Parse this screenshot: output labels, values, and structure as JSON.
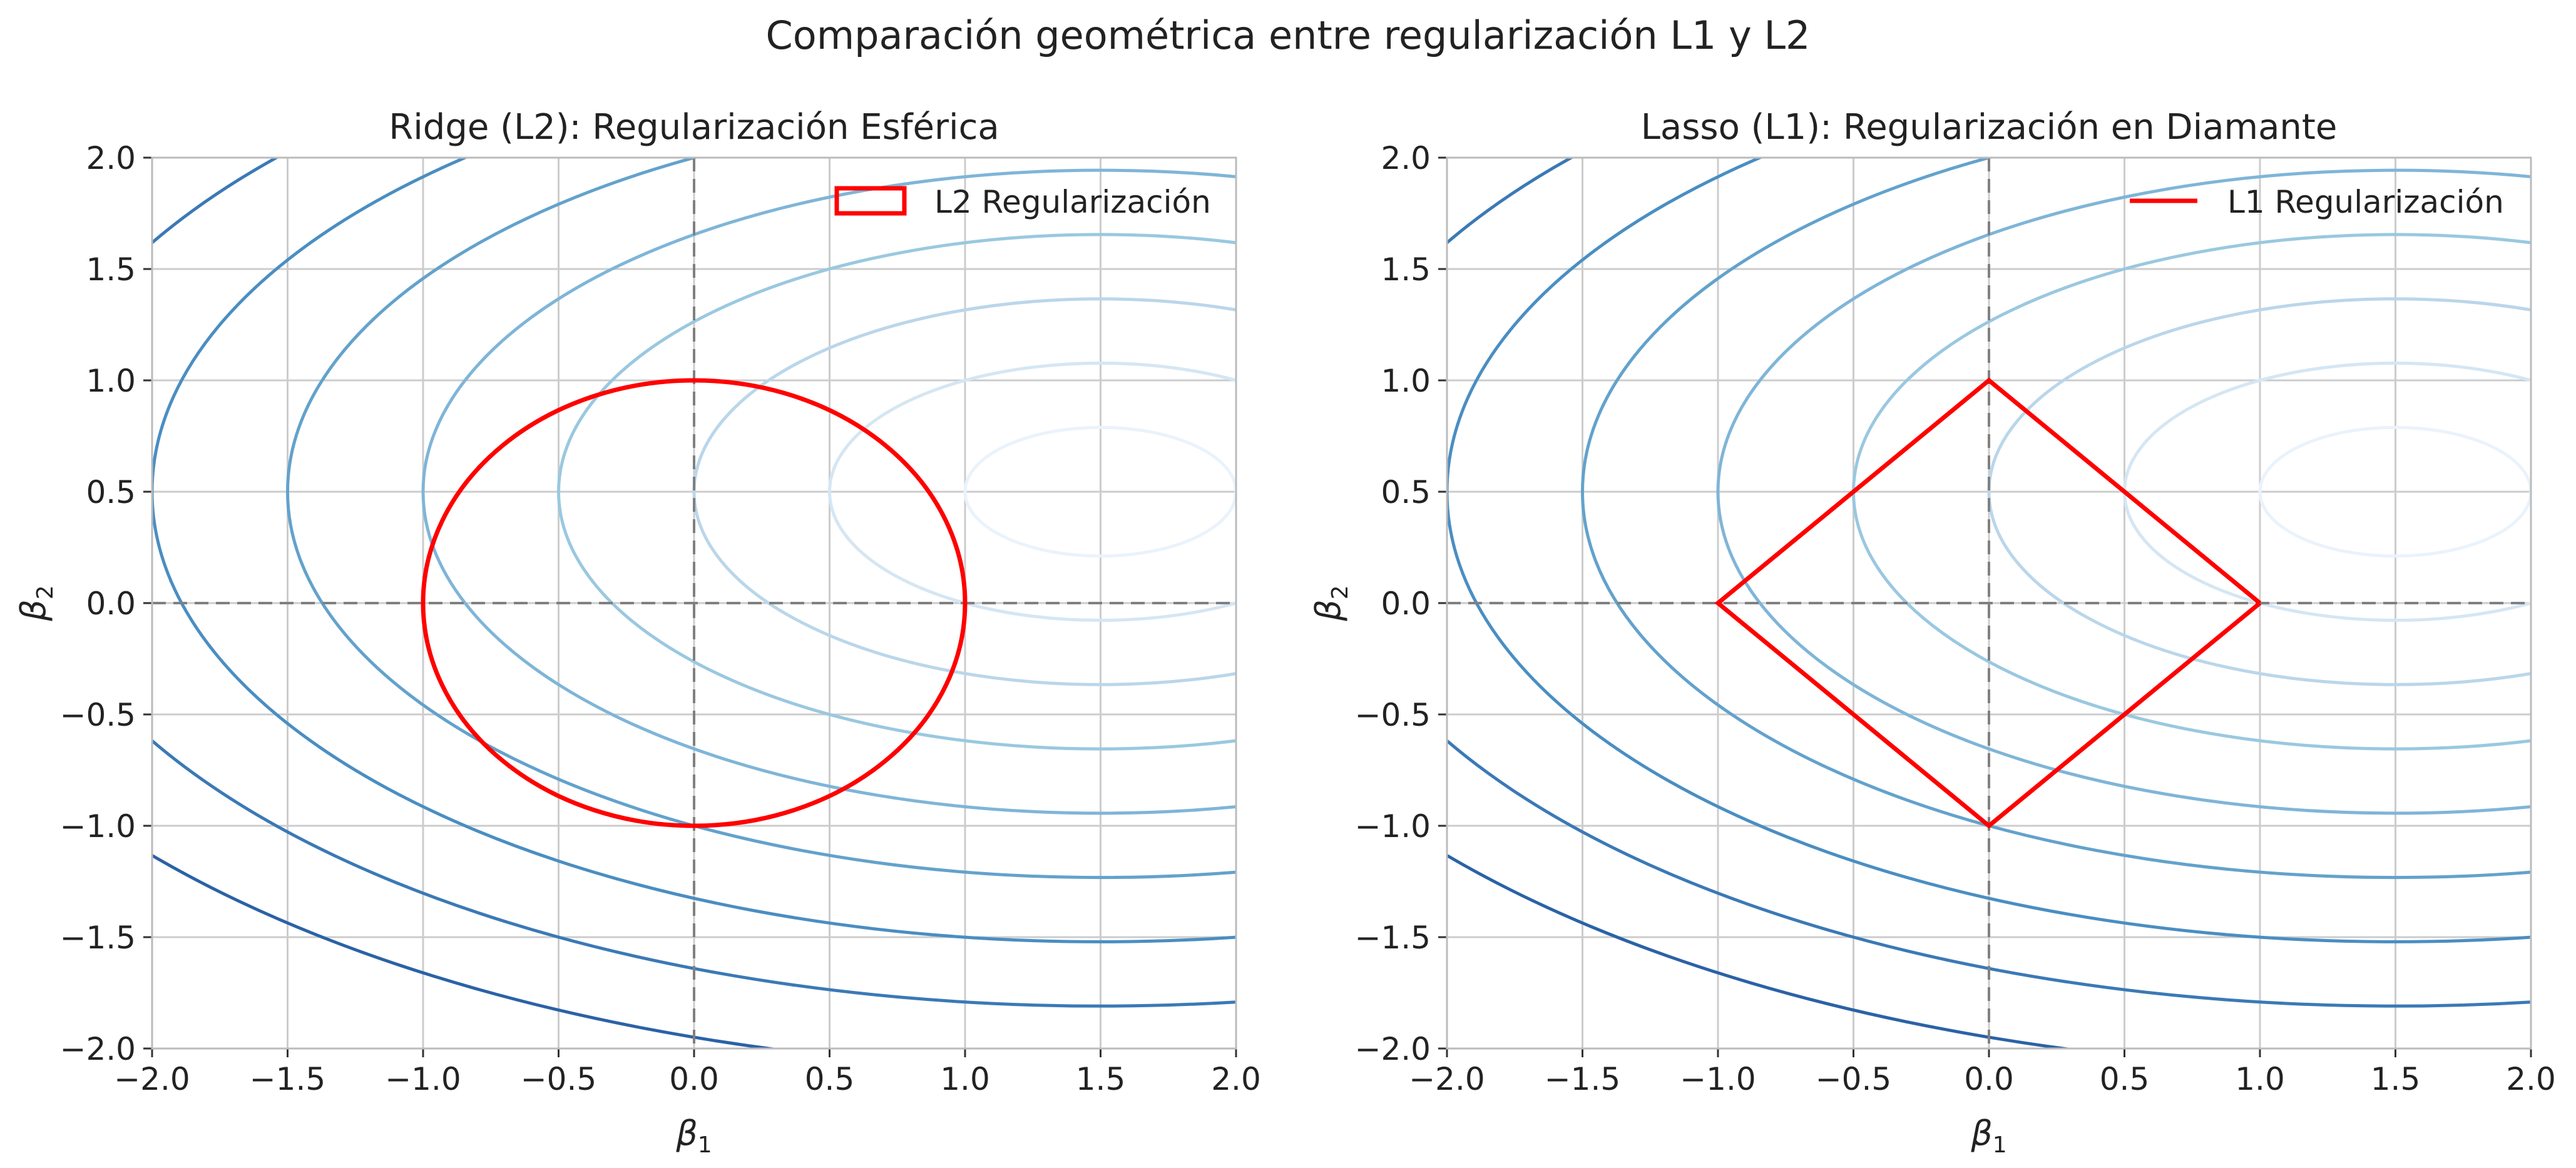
{
  "figure": {
    "title": "Comparación geométrica entre regularización L1 y L2"
  },
  "colors": {
    "constraint": "#ff0000",
    "grid": "#cccccc",
    "axis_lines": "#808080",
    "contour_scale": [
      "#eaf3fb",
      "#d5e6f3",
      "#bad6ea",
      "#9ac8e0",
      "#7fb5d8",
      "#63a2cc",
      "#4a8ec2",
      "#3b79b6",
      "#2b62a6"
    ]
  },
  "chart_data": [
    {
      "type": "contour",
      "title": "Ridge (L2): Regularización Esférica",
      "xlabel": "β",
      "xlabel_sub": "1",
      "ylabel": "β",
      "ylabel_sub": "2",
      "xlim": [
        -2.0,
        2.0
      ],
      "ylim": [
        -2.0,
        2.0
      ],
      "xticks": [
        "−2.0",
        "−1.5",
        "−1.0",
        "−0.5",
        "0.0",
        "0.5",
        "1.0",
        "1.5",
        "2.0"
      ],
      "yticks": [
        "−2.0",
        "−1.5",
        "−1.0",
        "−0.5",
        "0.0",
        "0.5",
        "1.0",
        "1.5",
        "2.0"
      ],
      "grid": true,
      "loss_contours": {
        "center": [
          1.5,
          0.5
        ],
        "x_weight": 1.0,
        "y_weight": 3.0,
        "levels": [
          0.25,
          1.0,
          2.25,
          4.0,
          6.25,
          9.0,
          12.25,
          16.0,
          20.25
        ]
      },
      "constraint": {
        "shape": "circle",
        "radius": 1.0,
        "center": [
          0,
          0
        ]
      },
      "legend": {
        "label": "L2 Regularización",
        "location": "upper right",
        "marker": "patch"
      }
    },
    {
      "type": "contour",
      "title": "Lasso (L1): Regularización en Diamante",
      "xlabel": "β",
      "xlabel_sub": "1",
      "ylabel": "β",
      "ylabel_sub": "2",
      "xlim": [
        -2.0,
        2.0
      ],
      "ylim": [
        -2.0,
        2.0
      ],
      "xticks": [
        "−2.0",
        "−1.5",
        "−1.0",
        "−0.5",
        "0.0",
        "0.5",
        "1.0",
        "1.5",
        "2.0"
      ],
      "yticks": [
        "−2.0",
        "−1.5",
        "−1.0",
        "−0.5",
        "0.0",
        "0.5",
        "1.0",
        "1.5",
        "2.0"
      ],
      "grid": true,
      "loss_contours": {
        "center": [
          1.5,
          0.5
        ],
        "x_weight": 1.0,
        "y_weight": 3.0,
        "levels": [
          0.25,
          1.0,
          2.25,
          4.0,
          6.25,
          9.0,
          12.25,
          16.0,
          20.25
        ]
      },
      "constraint": {
        "shape": "diamond",
        "vertices": [
          [
            1,
            0
          ],
          [
            0,
            1
          ],
          [
            -1,
            0
          ],
          [
            0,
            -1
          ],
          [
            1,
            0
          ]
        ]
      },
      "legend": {
        "label": "L1 Regularización",
        "location": "upper right",
        "marker": "line"
      }
    }
  ]
}
